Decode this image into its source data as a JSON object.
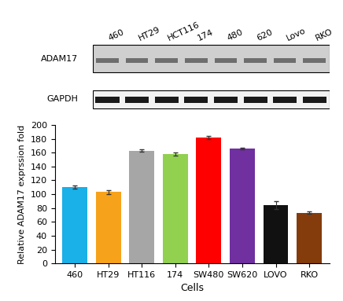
{
  "blot": {
    "lanes": [
      "460",
      "HT29",
      "HCT116",
      "174",
      "480",
      "620",
      "Lovo",
      "RKO"
    ],
    "rows": [
      "ADAM17",
      "GAPDH"
    ]
  },
  "chart_data": {
    "type": "bar",
    "categories": [
      "460",
      "HT29",
      "HT116",
      "174",
      "SW480",
      "SW620",
      "LOVO",
      "RKO"
    ],
    "values": [
      110,
      103,
      163,
      158,
      182,
      166,
      84,
      73
    ],
    "errors": [
      2,
      3,
      2,
      2,
      2,
      1.5,
      6,
      1.5
    ],
    "colors": [
      "#1ab0e8",
      "#f7a21b",
      "#a6a6a6",
      "#92d050",
      "#ff0000",
      "#7030a0",
      "#111111",
      "#843c0c"
    ],
    "x_label": "Cells",
    "y_label": "Relative ADAM17 exprssion fold",
    "ylim": [
      0,
      200
    ],
    "yticks": [
      0,
      20,
      40,
      60,
      80,
      100,
      120,
      140,
      160,
      180,
      200
    ]
  }
}
